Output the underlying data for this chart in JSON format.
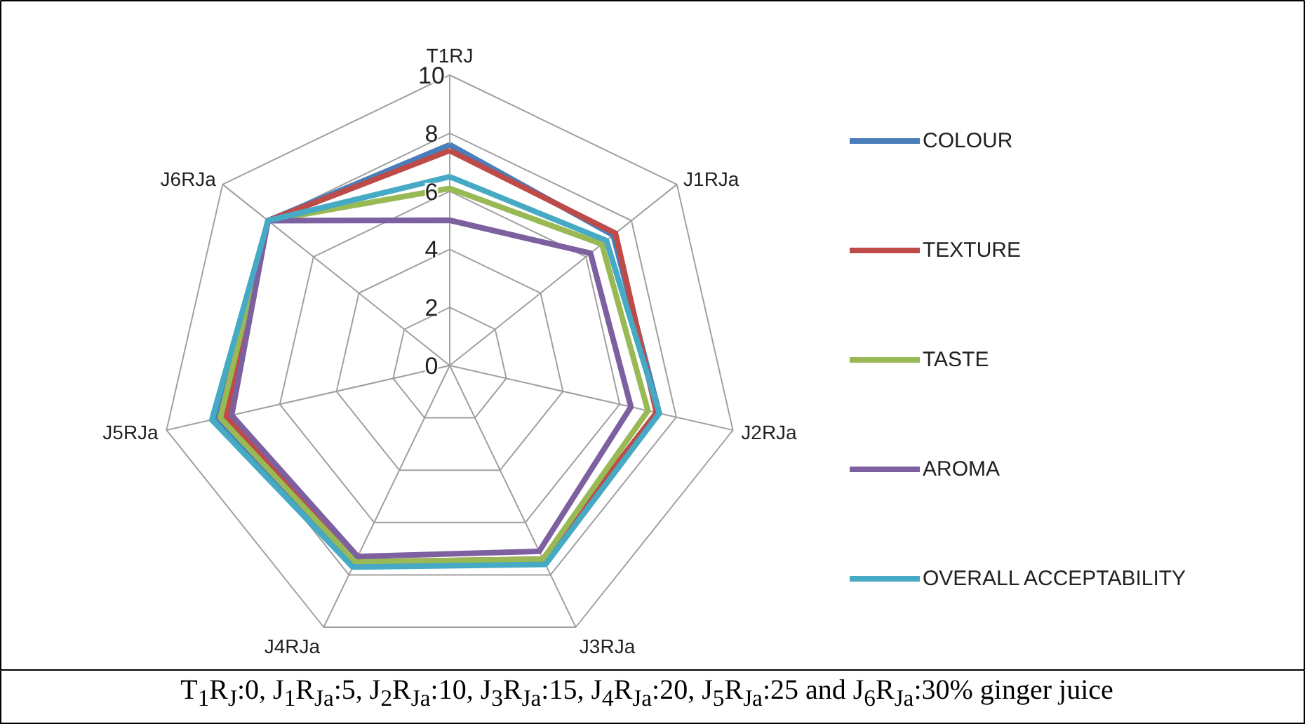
{
  "chart_data": {
    "type": "radar",
    "categories": [
      "T1RJ",
      "J1RJa",
      "J2RJa",
      "J3RJa",
      "J4RJa",
      "J5RJa",
      "J6RJa"
    ],
    "ylim": [
      0,
      10
    ],
    "yticks": [
      0,
      2,
      4,
      6,
      8,
      10
    ],
    "grid": true,
    "legend": "right",
    "marker": "none",
    "line_style": "solid",
    "series": [
      {
        "name": "COLOUR",
        "color": "#4a7ebb",
        "values": [
          7.6,
          7.2,
          7.4,
          7.5,
          7.6,
          8.2,
          8.0
        ]
      },
      {
        "name": "TEXTURE",
        "color": "#be4b48",
        "values": [
          7.4,
          7.3,
          7.3,
          7.4,
          7.5,
          7.9,
          8.0
        ]
      },
      {
        "name": "TASTE",
        "color": "#98b954",
        "values": [
          6.1,
          6.7,
          7.0,
          7.4,
          7.5,
          8.1,
          8.0
        ]
      },
      {
        "name": "AROMA",
        "color": "#7d60a0",
        "values": [
          5.0,
          6.2,
          6.4,
          7.1,
          7.3,
          7.7,
          8.0
        ]
      },
      {
        "name": "OVERALL ACCEPTABILITY",
        "color": "#46aac5",
        "values": [
          6.5,
          6.9,
          7.4,
          7.6,
          7.7,
          8.4,
          8.0
        ]
      }
    ],
    "annotations": [
      "T$_{1}$R$_{J}$:0, J$_{1}$R$_{Ja}$:5, J$_{2}$R$_{Ja}$:10, J$_{3}$R$_{Ja}$:15, J$_{4}$R$_{Ja}$:20, J$_{5}$R$_{Ja}$:25 and J$_{6}$R$_{Ja}$:30% ginger juice"
    ]
  }
}
